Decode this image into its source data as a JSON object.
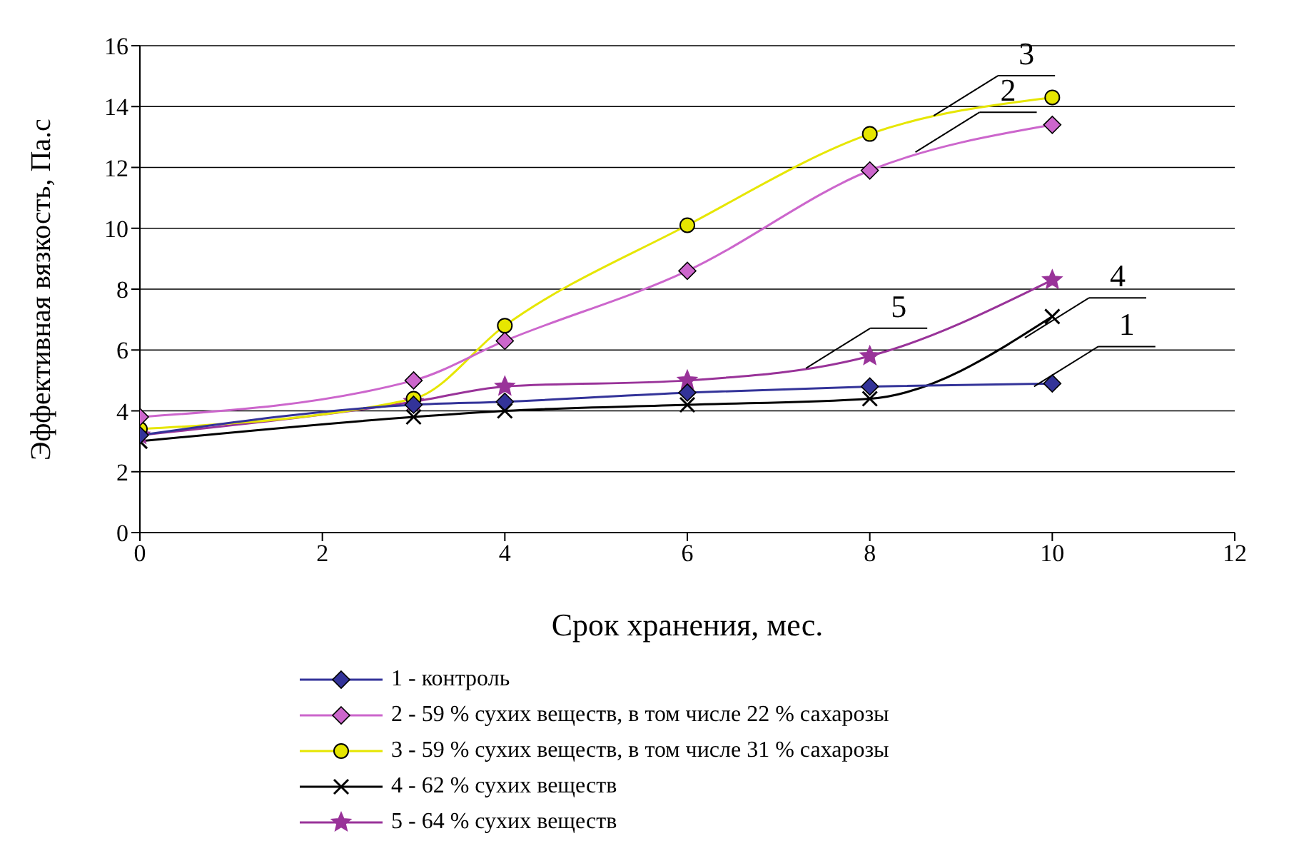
{
  "chart_data": {
    "type": "line",
    "xlabel": "Срок хранения, мес.",
    "ylabel": "Эффективная вязкость, Па.с",
    "x": [
      0,
      3,
      4,
      6,
      8,
      10
    ],
    "series": [
      {
        "name": "1 - контроль",
        "color": "#333399",
        "marker": "diamond",
        "values": [
          3.2,
          4.2,
          4.3,
          4.6,
          4.8,
          4.9
        ]
      },
      {
        "name": "2 - 59 % сухих веществ, в том числе 22 % сахарозы",
        "color": "#cc66cc",
        "marker": "diamond",
        "values": [
          3.8,
          5.0,
          6.3,
          8.6,
          11.9,
          13.4
        ]
      },
      {
        "name": "3 - 59 % сухих веществ, в том числе 31 % сахарозы",
        "color": "#e6e600",
        "marker": "circle",
        "values": [
          3.4,
          4.4,
          6.8,
          10.1,
          13.1,
          14.3
        ]
      },
      {
        "name": "4 - 62 % сухих веществ",
        "color": "#000000",
        "marker": "cross",
        "values": [
          3.0,
          3.8,
          4.0,
          4.2,
          4.4,
          7.1
        ]
      },
      {
        "name": "5 - 64 % сухих веществ",
        "color": "#993399",
        "marker": "star",
        "values": [
          3.2,
          4.3,
          4.8,
          5.0,
          5.8,
          8.3
        ]
      }
    ],
    "xlim": [
      0,
      12
    ],
    "xticks": [
      0,
      2,
      4,
      6,
      8,
      10,
      12
    ],
    "ylim": [
      0,
      16
    ],
    "yticks": [
      0,
      2,
      4,
      6,
      8,
      10,
      12,
      14,
      16
    ],
    "grid": "y",
    "legend": "bottom",
    "annotations": [
      {
        "text": "1",
        "x": 9.8,
        "y": 4.8
      },
      {
        "text": "2",
        "x": 8.5,
        "y": 12.5
      },
      {
        "text": "3",
        "x": 8.7,
        "y": 13.7
      },
      {
        "text": "4",
        "x": 9.7,
        "y": 6.4
      },
      {
        "text": "5",
        "x": 7.3,
        "y": 5.4
      }
    ]
  }
}
